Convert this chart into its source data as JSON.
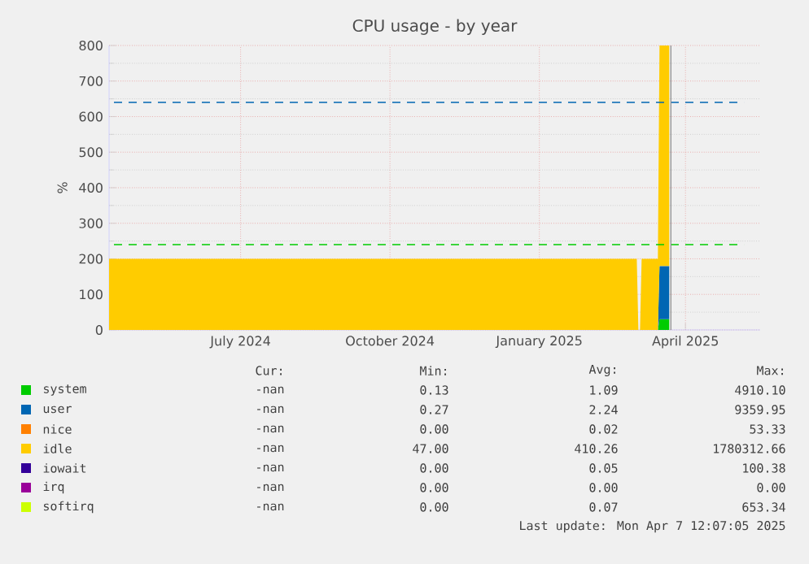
{
  "chart_data": {
    "type": "area",
    "stacked": true,
    "title": "CPU usage - by year",
    "ylabel": "%",
    "x": [
      "2024-04-11",
      "2025-03-02",
      "2025-03-03",
      "2025-03-04",
      "2025-03-05",
      "2025-03-15",
      "2025-03-16",
      "2025-03-22"
    ],
    "series": [
      {
        "name": "system",
        "color": "#00cc00",
        "values": [
          0,
          0,
          0,
          0,
          0,
          0,
          30,
          30
        ]
      },
      {
        "name": "user",
        "color": "#0066b3",
        "values": [
          0,
          0,
          0,
          0,
          0,
          0,
          150,
          150
        ]
      },
      {
        "name": "nice",
        "color": "#ff8000",
        "values": [
          null,
          null,
          null,
          null,
          null,
          null,
          null,
          null
        ]
      },
      {
        "name": "idle",
        "color": "#ffcc00",
        "values": [
          200,
          200,
          0,
          0,
          200,
          200,
          620,
          620
        ]
      },
      {
        "name": "iowait",
        "color": "#330099",
        "values": [
          null,
          null,
          null,
          null,
          null,
          null,
          null,
          null
        ]
      },
      {
        "name": "irq",
        "color": "#990099",
        "values": [
          null,
          null,
          null,
          null,
          null,
          null,
          null,
          null
        ]
      },
      {
        "name": "softirq",
        "color": "#ccff00",
        "values": [
          null,
          null,
          null,
          null,
          null,
          null,
          null,
          null
        ]
      }
    ],
    "xlim": [
      "2024-04-11",
      "2025-05-17"
    ],
    "xticks": [
      {
        "value": "2024-07-01",
        "label": "July 2024"
      },
      {
        "value": "2024-10-01",
        "label": "October 2024"
      },
      {
        "value": "2025-01-01",
        "label": "January 2025"
      },
      {
        "value": "2025-04-01",
        "label": "April 2025"
      }
    ],
    "ylim": [
      0,
      800
    ],
    "yticks": [
      0,
      100,
      200,
      300,
      400,
      500,
      600,
      700,
      800
    ],
    "grid": true,
    "legend": "bottom",
    "ref_lines": [
      {
        "axis": "y",
        "value": 640,
        "color": "#0066b3",
        "line_style": "dashed"
      },
      {
        "axis": "y",
        "value": 240,
        "color": "#00cc00",
        "line_style": "dashed"
      },
      {
        "axis": "x",
        "value": "2025-03-22",
        "color": "#888888",
        "line_style": "solid"
      }
    ],
    "annotations": [
      "Cur:",
      "Min:",
      "Avg:",
      "Max:",
      "-nan",
      "0.13",
      "1.09",
      "4910.10",
      "-nan",
      "0.27",
      "2.24",
      "9359.95",
      "-nan",
      "0.00",
      "0.02",
      "53.33",
      "-nan",
      "47.00",
      "410.26",
      "1780312.66",
      "-nan",
      "0.00",
      "0.05",
      "100.38",
      "-nan",
      "0.00",
      "0.00",
      "0.00",
      "-nan",
      "0.00",
      "0.07",
      "653.34",
      "Last update: Mon Apr  7 12:07:05 2025"
    ]
  }
}
